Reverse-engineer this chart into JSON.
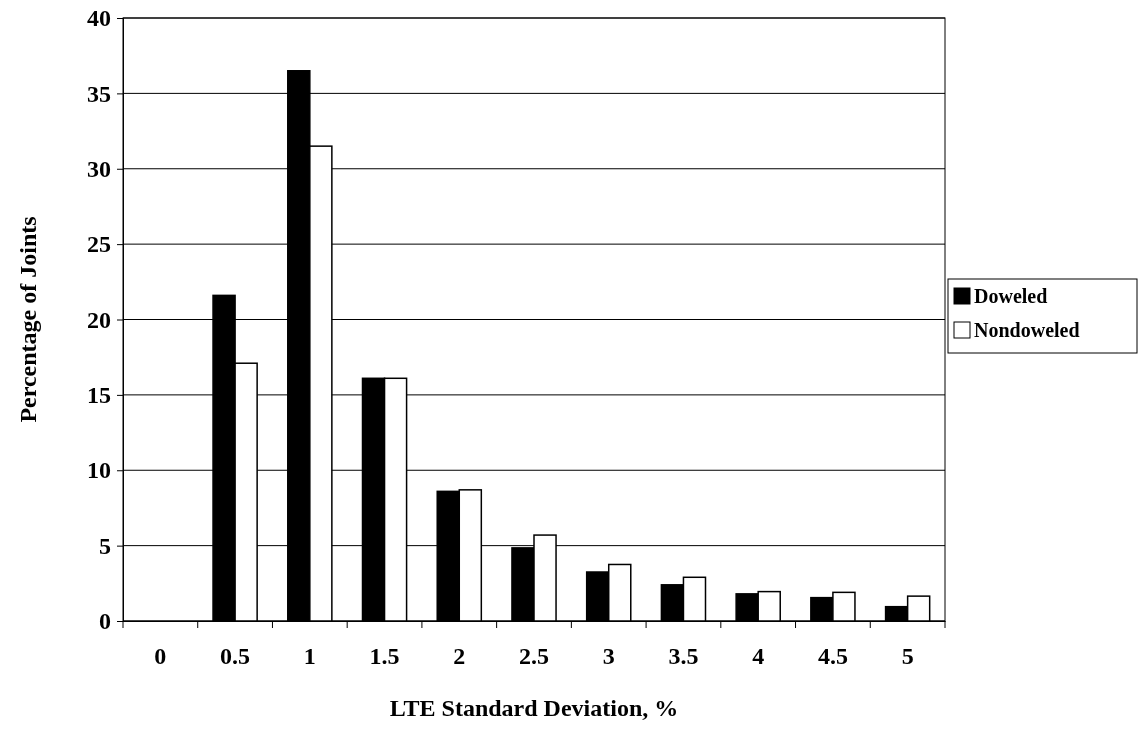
{
  "chart_data": {
    "type": "bar",
    "xlabel": "LTE Standard Deviation, %",
    "ylabel": "Percentage of Joints",
    "categories": [
      "0",
      "0.5",
      "1",
      "1.5",
      "2",
      "2.5",
      "3",
      "3.5",
      "4",
      "4.5",
      "5"
    ],
    "series": [
      {
        "name": "Doweled",
        "color": "#000000",
        "values": [
          0,
          21.6,
          36.5,
          16.1,
          8.6,
          4.85,
          3.25,
          2.4,
          1.8,
          1.55,
          0.95
        ]
      },
      {
        "name": "Nondoweled",
        "color": "#ffffff",
        "values": [
          0,
          17.1,
          31.5,
          16.1,
          8.7,
          5.7,
          3.75,
          2.9,
          1.95,
          1.9,
          1.65
        ]
      }
    ],
    "ylim": [
      0,
      40
    ],
    "yticks": [
      0,
      5,
      10,
      15,
      20,
      25,
      30,
      35,
      40
    ],
    "grid": "y",
    "legend": "right"
  }
}
